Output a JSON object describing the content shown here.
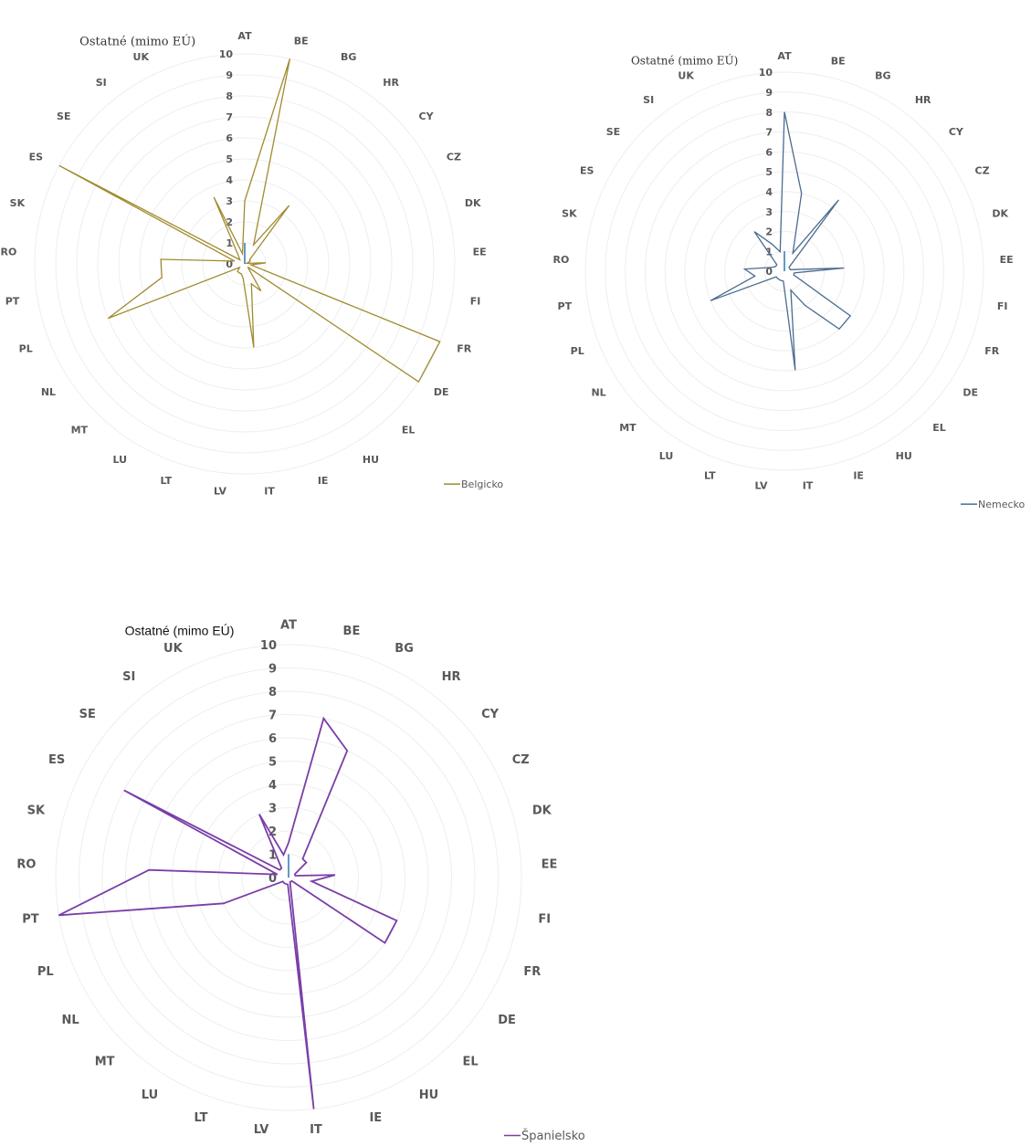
{
  "chart_data": [
    {
      "type": "radar",
      "categories": [
        "AT",
        "BE",
        "BG",
        "HR",
        "CY",
        "CZ",
        "DK",
        "EE",
        "FI",
        "FR",
        "DE",
        "EL",
        "HU",
        "IE",
        "IT",
        "LV",
        "LT",
        "LU",
        "MT",
        "NL",
        "PL",
        "PT",
        "RO",
        "SK",
        "ES",
        "SE",
        "SI",
        "UK",
        "Ostatné (mimo EÚ)"
      ],
      "ticks": [
        "0",
        "1",
        "2",
        "3",
        "4",
        "5",
        "6",
        "7",
        "8",
        "9",
        "10"
      ],
      "rlim": [
        0,
        10
      ],
      "grid": true,
      "legend_position": "bottom-right",
      "series": [
        {
          "name": "Belgicko",
          "color": "#a08b2f",
          "values": [
            3,
            10,
            1,
            3.5,
            0.3,
            0.3,
            0.1,
            1,
            0.3,
            10,
            10,
            0.2,
            1.5,
            1,
            4,
            0.7,
            0.5,
            0.5,
            0.5,
            0.3,
            7,
            4,
            4,
            0.5,
            10,
            0.3,
            0.5,
            3.5,
            0.5
          ]
        },
        {
          "name": "Nemecko",
          "color": "#4a6b91",
          "values": [
            8,
            4,
            1,
            4.5,
            0.3,
            0.3,
            0.3,
            3,
            0.5,
            0.5,
            4,
            4,
            2,
            1,
            5,
            0.5,
            0.5,
            0.5,
            0.5,
            0.5,
            4,
            1.5,
            2,
            0.7,
            0.5,
            0.5,
            2.5,
            1.5,
            1
          ]
        },
        {
          "name": "Španielsko",
          "color": "#7a3ea8",
          "values": [
            1.5,
            7,
            6,
            1,
            1,
            0.3,
            0.3,
            2,
            1,
            5,
            5,
            0.2,
            0.2,
            0.2,
            10,
            0.3,
            0.3,
            0.3,
            0.3,
            0.3,
            3,
            10,
            6,
            0.5,
            8,
            0.5,
            0.5,
            3,
            1
          ]
        }
      ]
    }
  ]
}
